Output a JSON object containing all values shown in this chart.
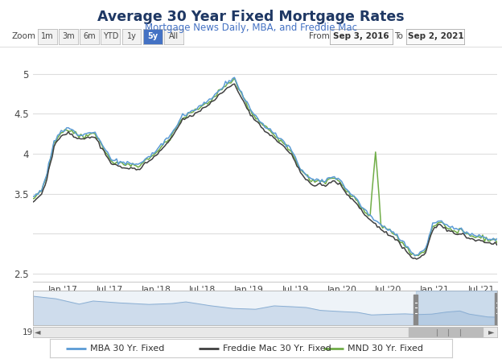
{
  "title": "Average 30 Year Fixed Mortgage Rates",
  "subtitle": "Mortgage News Daily, MBA, and Freddie Mac",
  "title_color": "#1f3864",
  "subtitle_color": "#4472c4",
  "zoom_label": "Zoom",
  "zoom_buttons": [
    "1m",
    "3m",
    "6m",
    "YTD",
    "1y",
    "5y",
    "All"
  ],
  "active_zoom": "5y",
  "from_label": "From",
  "from_date": "Sep 3, 2016",
  "to_label": "To",
  "to_date": "Sep 2, 2021",
  "ylim": [
    2.4,
    5.25
  ],
  "yticks": [
    2.5,
    3.0,
    3.5,
    4.0,
    4.5,
    5.0
  ],
  "ytick_labels": [
    "2.5",
    "",
    "3.5",
    "4",
    "4.5",
    "5"
  ],
  "xtick_labels": [
    "Jan '17",
    "Jul '17",
    "Jan '18",
    "Jul '18",
    "Jan '19",
    "Jul '19",
    "Jan '20",
    "Jul '20",
    "Jan '21",
    "Jul '21"
  ],
  "bg_color": "#ffffff",
  "plot_bg_color": "#ffffff",
  "grid_color": "#dddddd",
  "mba_color": "#5b9bd5",
  "freddie_color": "#404040",
  "mnd_color": "#70ad47",
  "legend_labels": [
    "MBA 30 Yr. Fixed",
    "Freddie Mac 30 Yr. Fixed",
    "MND 30 Yr. Fixed"
  ],
  "minimap_bg": "#eef3f8",
  "minimap_fill_color": "#c9d9ea",
  "minimap_line_color": "#8bafd4"
}
